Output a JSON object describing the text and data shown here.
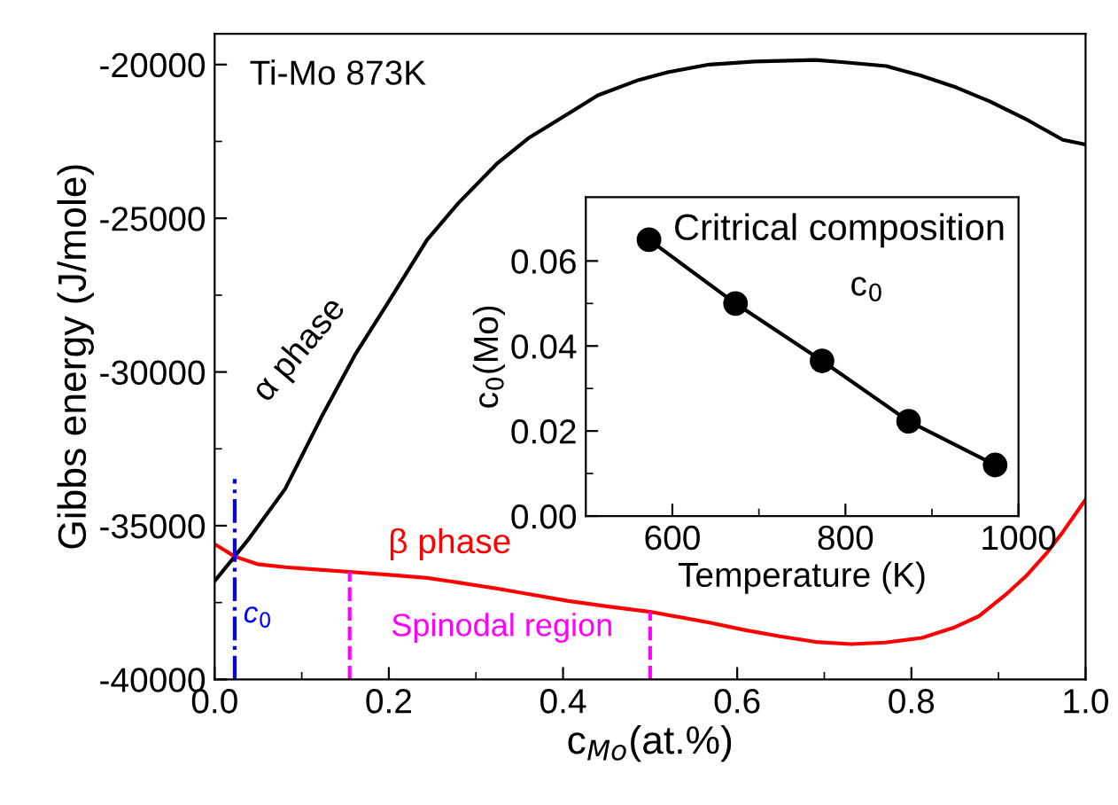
{
  "chart_data": [
    {
      "type": "line",
      "xlabel": "c$_{Mo}$(at.%)",
      "ylabel": "Gibbs energy (J/mole)",
      "annotations": [
        "Ti-Mo 873K",
        "Spinodal region"
      ],
      "xlim": [
        0,
        1
      ],
      "ylim": [
        -40000,
        -19000
      ],
      "xticks": [
        {
          "value": 0,
          "label": "0.0"
        },
        {
          "value": 0.2,
          "label": "0.2"
        },
        {
          "value": 0.4,
          "label": "0.4"
        },
        {
          "value": 0.6,
          "label": "0.6"
        },
        {
          "value": 0.8,
          "label": "0.8"
        },
        {
          "value": 1,
          "label": "1.0"
        }
      ],
      "yticks": [
        -40000,
        -35000,
        -30000,
        -25000,
        -20000
      ],
      "series": [
        {
          "name": "α phase",
          "color": "#000000",
          "x": [
            0,
            0.023,
            0.04,
            0.081,
            0.122,
            0.162,
            0.2,
            0.244,
            0.28,
            0.325,
            0.36,
            0.406,
            0.44,
            0.487,
            0.52,
            0.568,
            0.62,
            0.69,
            0.72,
            0.771,
            0.81,
            0.852,
            0.89,
            0.933,
            0.974,
            1.0
          ],
          "values": [
            -36800,
            -36000,
            -35400,
            -33800,
            -31500,
            -29400,
            -27700,
            -25700,
            -24500,
            -23200,
            -22400,
            -21600,
            -21000,
            -20500,
            -20250,
            -20000,
            -19900,
            -19850,
            -19920,
            -20050,
            -20350,
            -20750,
            -21200,
            -21800,
            -22450,
            -22600
          ]
        },
        {
          "name": "β phase",
          "color": "#ff0000",
          "x": [
            0,
            0.023,
            0.049,
            0.081,
            0.12,
            0.154,
            0.2,
            0.244,
            0.28,
            0.325,
            0.36,
            0.406,
            0.45,
            0.5,
            0.568,
            0.61,
            0.649,
            0.69,
            0.731,
            0.77,
            0.812,
            0.85,
            0.877,
            0.91,
            0.933,
            0.955,
            0.974,
            1.0
          ],
          "values": [
            -35600,
            -36000,
            -36250,
            -36350,
            -36430,
            -36500,
            -36600,
            -36700,
            -36850,
            -37050,
            -37220,
            -37450,
            -37620,
            -37800,
            -38150,
            -38400,
            -38600,
            -38780,
            -38850,
            -38800,
            -38650,
            -38300,
            -37950,
            -37200,
            -36600,
            -35900,
            -35200,
            -34150
          ]
        }
      ],
      "ref_lines": [
        {
          "axis": "x",
          "value": 0.023,
          "label": "c$_{0}$",
          "color": "#0000ff",
          "line_style": "dashdot"
        },
        {
          "axis": "x",
          "value": 0.155,
          "label": null,
          "color": "#ff00ff",
          "line_style": "dashed"
        },
        {
          "axis": "x",
          "value": 0.5,
          "label": null,
          "color": "#ff00ff",
          "line_style": "dashed"
        }
      ],
      "marker": "none",
      "line_style": "solid",
      "grid": false,
      "legend": false
    },
    {
      "type": "line",
      "title": "Critrical composition",
      "subtitle": "c$_{0}$",
      "xlabel": "Temperature (K)",
      "ylabel": "c$_{0}$(Mo)",
      "xlim": [
        500,
        1000
      ],
      "ylim": [
        0,
        0.075
      ],
      "xticks": [
        600,
        800,
        1000
      ],
      "yticks": [
        {
          "value": 0,
          "label": "0.00"
        },
        {
          "value": 0.02,
          "label": "0.02"
        },
        {
          "value": 0.04,
          "label": "0.04"
        },
        {
          "value": 0.06,
          "label": "0.06"
        }
      ],
      "x": [
        573,
        673,
        773,
        873,
        973
      ],
      "series": [
        {
          "color": "#000000",
          "values": [
            0.065,
            0.05,
            0.0365,
            0.0223,
            0.012
          ]
        }
      ],
      "marker": "circle",
      "line_style": "solid",
      "grid": false,
      "legend": false
    }
  ]
}
